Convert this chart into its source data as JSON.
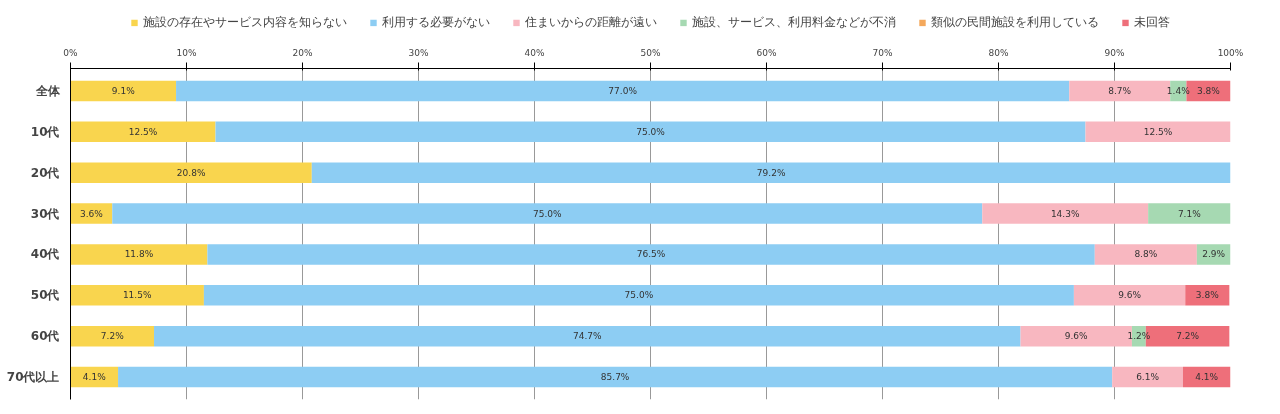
{
  "chart_data": {
    "type": "bar",
    "orientation": "horizontal",
    "stacked": true,
    "categories": [
      "全体",
      "10代",
      "20代",
      "30代",
      "40代",
      "50代",
      "60代",
      "70代以上"
    ],
    "series": [
      {
        "name": "施設の存在やサービス内容を知らない",
        "color": "#f9d54e",
        "values": [
          9.1,
          12.5,
          20.8,
          3.6,
          11.8,
          11.5,
          7.2,
          4.1
        ],
        "value_labels": [
          "9.1%",
          "12.5%",
          "20.8%",
          "3.6%",
          "11.8%",
          "11.5%",
          "7.2%",
          "4.1%"
        ]
      },
      {
        "name": "利用する必要がない",
        "color": "#8dcdf3",
        "values": [
          77.0,
          75.0,
          79.2,
          75.0,
          76.5,
          75.0,
          74.7,
          85.7
        ],
        "value_labels": [
          "77.0%",
          "75.0%",
          "79.2%",
          "75.0%",
          "76.5%",
          "75.0%",
          "74.7%",
          "85.7%"
        ]
      },
      {
        "name": "住まいからの距離が遠い",
        "color": "#f8b7c0",
        "values": [
          8.7,
          12.5,
          null,
          14.3,
          8.8,
          9.6,
          9.6,
          6.1
        ],
        "value_labels": [
          "8.7%",
          "12.5%",
          null,
          "14.3%",
          "8.8%",
          "9.6%",
          "9.6%",
          "6.1%"
        ]
      },
      {
        "name": "施設、サービス、利用料金などが不消",
        "color": "#a6d9b2",
        "values": [
          1.4,
          null,
          null,
          7.1,
          2.9,
          null,
          1.2,
          null
        ],
        "value_labels": [
          "1.4%",
          null,
          null,
          "7.1%",
          "2.9%",
          null,
          "1.2%",
          null
        ]
      },
      {
        "name": "類似の民間施設を利用している",
        "color": "#f4a85c",
        "values": [
          null,
          null,
          null,
          null,
          null,
          null,
          null,
          null
        ],
        "value_labels": [
          null,
          null,
          null,
          null,
          null,
          null,
          null,
          null
        ]
      },
      {
        "name": "未回答",
        "color": "#ee6f7a",
        "values": [
          3.8,
          null,
          null,
          null,
          null,
          3.8,
          7.2,
          4.1
        ],
        "value_labels": [
          "3.8%",
          null,
          null,
          null,
          null,
          "3.8%",
          "7.2%",
          "4.1%"
        ]
      }
    ],
    "xlim": [
      0,
      100
    ],
    "xticks": [
      {
        "value": 0,
        "label": "0%"
      },
      {
        "value": 10,
        "label": "10%"
      },
      {
        "value": 20,
        "label": "20%"
      },
      {
        "value": 30,
        "label": "30%"
      },
      {
        "value": 40,
        "label": "40%"
      },
      {
        "value": 50,
        "label": "50%"
      },
      {
        "value": 60,
        "label": "60%"
      },
      {
        "value": 70,
        "label": "70%"
      },
      {
        "value": 80,
        "label": "80%"
      },
      {
        "value": 90,
        "label": "90%"
      },
      {
        "value": 100,
        "label": "100%"
      }
    ],
    "grid": "x",
    "legend": "top"
  }
}
